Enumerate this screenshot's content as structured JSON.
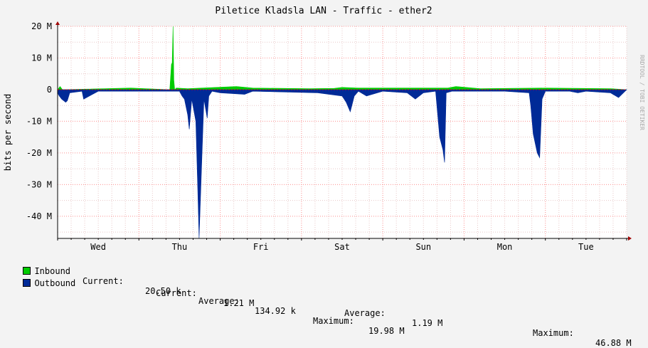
{
  "chart_data": {
    "type": "area",
    "title": "Piletice Kladsla LAN - Traffic - ether2",
    "ylabel": "bits per second",
    "xlabel": "",
    "watermark": "RRDTOOL / TOBI OETIKER",
    "ylim": [
      -47000000,
      20000000
    ],
    "y_ticks": [
      {
        "value": 20000000,
        "label": "20 M"
      },
      {
        "value": 10000000,
        "label": "10 M"
      },
      {
        "value": 0,
        "label": "0"
      },
      {
        "value": -10000000,
        "label": "-10 M"
      },
      {
        "value": -20000000,
        "label": "-20 M"
      },
      {
        "value": -30000000,
        "label": "-30 M"
      },
      {
        "value": -40000000,
        "label": "-40 M"
      }
    ],
    "x_range": [
      0,
      7
    ],
    "x_ticks": [
      {
        "value": 0.5,
        "label": "Wed"
      },
      {
        "value": 1.5,
        "label": "Thu"
      },
      {
        "value": 2.5,
        "label": "Fri"
      },
      {
        "value": 3.5,
        "label": "Sat"
      },
      {
        "value": 4.5,
        "label": "Sun"
      },
      {
        "value": 5.5,
        "label": "Mon"
      },
      {
        "value": 6.5,
        "label": "Tue"
      }
    ],
    "grid": true,
    "series": [
      {
        "name": "Inbound",
        "color": "#00cc00",
        "x": [
          0,
          0.03,
          0.06,
          0.9,
          1.38,
          1.4,
          1.41,
          1.42,
          1.43,
          1.44,
          1.46,
          1.6,
          2.2,
          2.4,
          2.8,
          3.1,
          3.4,
          3.5,
          3.7,
          4.8,
          4.9,
          5.2,
          6.0,
          6.8,
          7.0
        ],
        "values": [
          0,
          1000000,
          0,
          500000,
          0,
          8000000,
          8500000,
          19980000,
          3000000,
          0,
          500000,
          300000,
          1000000,
          500000,
          400000,
          300000,
          400000,
          700000,
          500000,
          500000,
          1000000,
          300000,
          500000,
          300000,
          0
        ]
      },
      {
        "name": "Outbound",
        "color": "#002a97",
        "x": [
          0,
          0.02,
          0.05,
          0.1,
          0.12,
          0.15,
          0.3,
          0.32,
          0.5,
          1.0,
          1.5,
          1.53,
          1.56,
          1.6,
          1.62,
          1.65,
          1.7,
          1.72,
          1.74,
          1.8,
          1.84,
          1.86,
          1.9,
          2.0,
          2.3,
          2.4,
          3.2,
          3.5,
          3.55,
          3.6,
          3.65,
          3.7,
          3.8,
          4.0,
          4.3,
          4.4,
          4.5,
          4.65,
          4.7,
          4.74,
          4.76,
          4.78,
          4.85,
          5.0,
          5.5,
          5.8,
          5.82,
          5.85,
          5.9,
          5.93,
          5.96,
          6.0,
          6.3,
          6.4,
          6.5,
          6.8,
          6.9,
          7.0
        ],
        "values": [
          -1000000,
          -2000000,
          -3000000,
          -4000000,
          -3500000,
          -1000000,
          -500000,
          -3000000,
          -500000,
          -500000,
          -500000,
          -2000000,
          -3000000,
          -8000000,
          -12500000,
          -3000000,
          -10000000,
          -28000000,
          -46880000,
          -3000000,
          -9000000,
          -2000000,
          -500000,
          -1000000,
          -1500000,
          -500000,
          -1000000,
          -2000000,
          -4000000,
          -7000000,
          -2000000,
          -500000,
          -2000000,
          -500000,
          -1000000,
          -3000000,
          -1000000,
          -500000,
          -15000000,
          -19000000,
          -23000000,
          -1000000,
          -500000,
          -500000,
          -500000,
          -1000000,
          -5000000,
          -14000000,
          -20000000,
          -21500000,
          -3000000,
          -500000,
          -500000,
          -1000000,
          -500000,
          -1000000,
          -2500000,
          0
        ]
      }
    ],
    "legend": [
      {
        "name": "Inbound",
        "color": "#00cc00",
        "current_label": "Current:",
        "current": "20.50 k",
        "average_label": "Average:",
        "average": "134.92 k",
        "maximum_label": "Maximum:",
        "maximum": "19.98 M"
      },
      {
        "name": "Outbound",
        "color": "#002a97",
        "current_label": "Current:",
        "current": "1.21 M",
        "average_label": "Average:",
        "average": "1.19 M",
        "maximum_label": "Maximum:",
        "maximum": "46.88 M"
      }
    ]
  }
}
